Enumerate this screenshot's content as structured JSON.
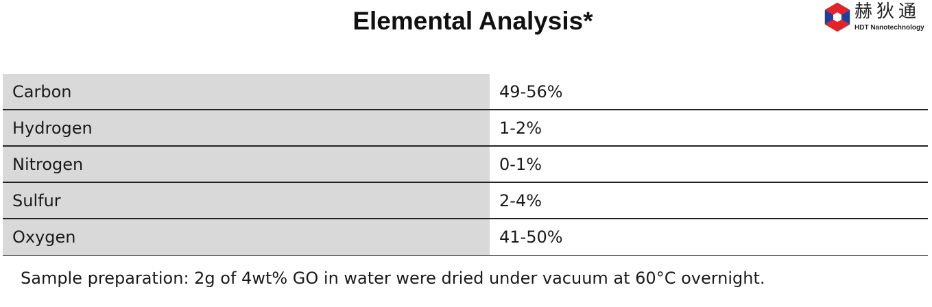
{
  "title": "Elemental Analysis*",
  "logo": {
    "chinese_name": "赫狄通",
    "english_name": "HDT Nanotechnology",
    "colors": {
      "red": "#e2232a",
      "blue": "#1f3f9a",
      "light": "#e8e8ec"
    }
  },
  "table": {
    "rows": [
      {
        "element": "Carbon",
        "value": "49-56%"
      },
      {
        "element": "Hydrogen",
        "value": "1-2%"
      },
      {
        "element": "Nitrogen",
        "value": "0-1%"
      },
      {
        "element": "Sulfur",
        "value": "2-4%"
      },
      {
        "element": "Oxygen",
        "value": "41-50%"
      }
    ]
  },
  "footnote": "Sample preparation: 2g of 4wt% GO in water were dried under vacuum at 60°C overnight."
}
